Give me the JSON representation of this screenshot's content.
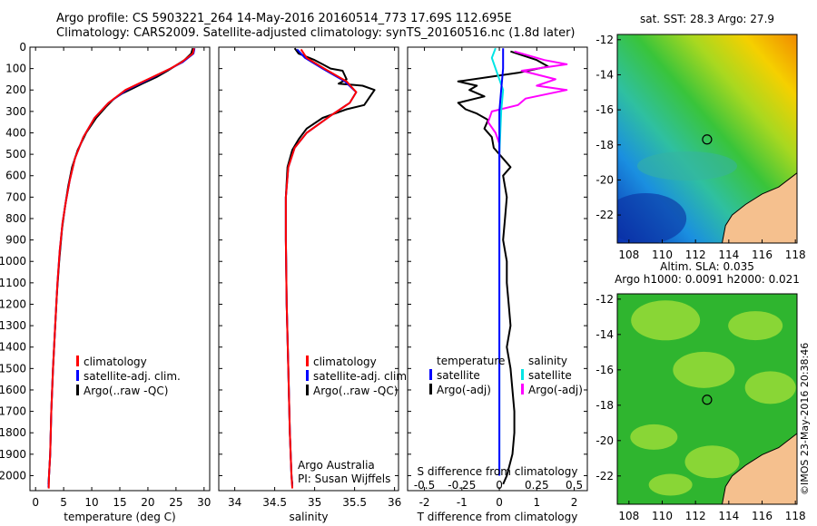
{
  "header": {
    "line1": "Argo profile: CS 5903221_264 14-May-2016 20160514_773 17.69S 112.695E",
    "line2": "Climatology: CARS2009. Satellite-adjusted climatology: synTS_20160516.nc (1.8d later)"
  },
  "copyright": "©IMOS 23-May-2016 20:38:46",
  "colors": {
    "climatology": "#ff0000",
    "satellite": "#0000ff",
    "argo": "#000000",
    "sat_salinity": "#00e5e5",
    "argo_salinity": "#ff00ff",
    "land": "#f5c08e"
  },
  "chart_data": [
    {
      "type": "line",
      "panel": "temperature",
      "xlabel": "temperature (deg C)",
      "xlim": [
        -1,
        31
      ],
      "xticks": [
        0,
        5,
        10,
        15,
        20,
        25,
        30
      ],
      "ylim": [
        2070,
        0
      ],
      "yticks": [
        0,
        100,
        200,
        300,
        400,
        500,
        600,
        700,
        800,
        900,
        1000,
        1100,
        1200,
        1300,
        1400,
        1500,
        1600,
        1700,
        1800,
        1900,
        2000
      ],
      "legend": {
        "placement": "lower-right",
        "entries": [
          "climatology",
          "satellite-adj. clim.",
          "Argo(..raw -QC)"
        ]
      },
      "series": [
        {
          "name": "climatology",
          "color": "#ff0000",
          "points": [
            [
              28.2,
              5
            ],
            [
              28.0,
              30
            ],
            [
              26,
              70
            ],
            [
              24,
              100
            ],
            [
              20,
              150
            ],
            [
              16,
              200
            ],
            [
              13,
              260
            ],
            [
              10.5,
              330
            ],
            [
              8.5,
              420
            ],
            [
              7,
              520
            ],
            [
              6.1,
              620
            ],
            [
              5.4,
              720
            ],
            [
              4.8,
              820
            ],
            [
              4.3,
              950
            ],
            [
              3.9,
              1100
            ],
            [
              3.5,
              1300
            ],
            [
              3.1,
              1500
            ],
            [
              2.8,
              1700
            ],
            [
              2.6,
              1900
            ],
            [
              2.4,
              2000
            ],
            [
              2.35,
              2060
            ]
          ]
        },
        {
          "name": "satellite-adj. clim.",
          "color": "#0000ff",
          "points": [
            [
              28.3,
              5
            ],
            [
              28.1,
              30
            ],
            [
              26.2,
              70
            ],
            [
              24,
              100
            ],
            [
              20.2,
              150
            ],
            [
              16.2,
              200
            ],
            [
              13,
              260
            ],
            [
              10.5,
              330
            ],
            [
              8.5,
              420
            ],
            [
              7,
              520
            ],
            [
              6.1,
              620
            ],
            [
              5.4,
              720
            ],
            [
              4.8,
              820
            ],
            [
              4.3,
              950
            ],
            [
              3.9,
              1100
            ],
            [
              3.5,
              1300
            ],
            [
              3.1,
              1500
            ],
            [
              2.8,
              1700
            ],
            [
              2.6,
              1900
            ],
            [
              2.4,
              2000
            ],
            [
              2.3,
              2055
            ]
          ]
        },
        {
          "name": "Argo(..raw -QC)",
          "color": "#000000",
          "points": [
            [
              28.0,
              5
            ],
            [
              27.7,
              30
            ],
            [
              26.5,
              60
            ],
            [
              25,
              85
            ],
            [
              23.5,
              110
            ],
            [
              21.5,
              140
            ],
            [
              19,
              170
            ],
            [
              17.5,
              190
            ],
            [
              15.5,
              215
            ],
            [
              14,
              240
            ],
            [
              12.5,
              280
            ],
            [
              10.8,
              330
            ],
            [
              9,
              400
            ],
            [
              7.5,
              480
            ],
            [
              6.5,
              560
            ],
            [
              5.8,
              650
            ],
            [
              5.2,
              750
            ],
            [
              4.7,
              850
            ],
            [
              4.2,
              1000
            ],
            [
              3.8,
              1150
            ],
            [
              3.4,
              1350
            ],
            [
              3.1,
              1500
            ],
            [
              2.8,
              1700
            ],
            [
              2.6,
              1900
            ],
            [
              2.4,
              2000
            ],
            [
              2.3,
              2040
            ]
          ]
        }
      ]
    },
    {
      "type": "line",
      "panel": "salinity",
      "xlabel": "salinity",
      "xlim": [
        33.8,
        36.05
      ],
      "xticks": [
        34,
        34.5,
        35,
        35.5,
        36
      ],
      "ylim": [
        2070,
        0
      ],
      "legend": {
        "placement": "lower-right",
        "entries": [
          "climatology",
          "satellite-adj. clim.",
          "Argo(..raw -QC)"
        ]
      },
      "annotations": [
        "Argo Australia",
        "PI: Susan Wijffels"
      ],
      "series": [
        {
          "name": "climatology",
          "color": "#ff0000",
          "points": [
            [
              34.83,
              10
            ],
            [
              34.9,
              50
            ],
            [
              35.12,
              100
            ],
            [
              35.4,
              160
            ],
            [
              35.52,
              210
            ],
            [
              35.44,
              260
            ],
            [
              35.2,
              320
            ],
            [
              34.9,
              400
            ],
            [
              34.75,
              470
            ],
            [
              34.67,
              560
            ],
            [
              34.64,
              700
            ],
            [
              34.64,
              900
            ],
            [
              34.65,
              1200
            ],
            [
              34.67,
              1500
            ],
            [
              34.69,
              1800
            ],
            [
              34.71,
              2000
            ],
            [
              34.72,
              2060
            ]
          ]
        },
        {
          "name": "satellite-adj. clim.",
          "color": "#0000ff",
          "points": [
            [
              34.78,
              10
            ],
            [
              34.88,
              50
            ],
            [
              35.1,
              100
            ],
            [
              35.38,
              160
            ],
            [
              35.52,
              210
            ],
            [
              35.44,
              260
            ],
            [
              35.2,
              320
            ],
            [
              34.9,
              400
            ],
            [
              34.75,
              470
            ],
            [
              34.67,
              560
            ],
            [
              34.64,
              700
            ],
            [
              34.64,
              900
            ],
            [
              34.65,
              1200
            ],
            [
              34.67,
              1500
            ],
            [
              34.69,
              1800
            ],
            [
              34.71,
              2000
            ],
            [
              34.72,
              2050
            ]
          ]
        },
        {
          "name": "Argo(..raw -QC)",
          "color": "#000000",
          "points": [
            [
              34.75,
              5
            ],
            [
              34.8,
              30
            ],
            [
              35.0,
              60
            ],
            [
              35.1,
              80
            ],
            [
              35.2,
              100
            ],
            [
              35.35,
              110
            ],
            [
              35.4,
              150
            ],
            [
              35.3,
              170
            ],
            [
              35.6,
              180
            ],
            [
              35.75,
              200
            ],
            [
              35.62,
              270
            ],
            [
              35.4,
              290
            ],
            [
              35.1,
              330
            ],
            [
              34.9,
              380
            ],
            [
              34.8,
              430
            ],
            [
              34.72,
              480
            ],
            [
              34.66,
              560
            ],
            [
              34.64,
              700
            ],
            [
              34.64,
              900
            ],
            [
              34.65,
              1200
            ],
            [
              34.67,
              1500
            ],
            [
              34.69,
              1800
            ],
            [
              34.71,
              2000
            ],
            [
              34.72,
              2040
            ]
          ]
        }
      ]
    },
    {
      "type": "line",
      "panel": "differences",
      "xlabel": "T difference from climatology",
      "xlabel_top": "S difference from climatology",
      "xlim": [
        -2.45,
        2.35
      ],
      "xticks": [
        -2,
        -1,
        0,
        1,
        2
      ],
      "xticks_top": [
        "-0.5",
        "-0.25",
        "0",
        "0.25",
        "0.5"
      ],
      "ylim": [
        2070,
        0
      ],
      "legend": {
        "placement": "lower-center",
        "headers": [
          "temperature",
          "salinity"
        ],
        "entries": [
          "satellite",
          "Argo(-adj)",
          "satellite",
          "Argo(-adj)"
        ]
      },
      "series": [
        {
          "name": "temperature satellite",
          "color": "#0000ff",
          "points": [
            [
              0.1,
              5
            ],
            [
              0.1,
              100
            ],
            [
              0.05,
              200
            ],
            [
              0,
              300
            ],
            [
              0,
              500
            ],
            [
              0,
              1000
            ],
            [
              0,
              1500
            ],
            [
              0,
              2000
            ]
          ]
        },
        {
          "name": "temperature Argo(-adj)",
          "color": "#000000",
          "points": [
            [
              0.3,
              20
            ],
            [
              1,
              60
            ],
            [
              1.3,
              90
            ],
            [
              0.5,
              120
            ],
            [
              -1.1,
              160
            ],
            [
              -0.6,
              180
            ],
            [
              -0.8,
              200
            ],
            [
              -0.4,
              230
            ],
            [
              -1.1,
              260
            ],
            [
              -0.9,
              290
            ],
            [
              -0.6,
              310
            ],
            [
              -0.3,
              340
            ],
            [
              -0.4,
              380
            ],
            [
              -0.2,
              420
            ],
            [
              -0.15,
              470
            ],
            [
              0.1,
              520
            ],
            [
              0.3,
              560
            ],
            [
              0.1,
              600
            ],
            [
              0.2,
              700
            ],
            [
              0.15,
              800
            ],
            [
              0.1,
              900
            ],
            [
              0.2,
              1000
            ],
            [
              0.2,
              1100
            ],
            [
              0.25,
              1200
            ],
            [
              0.3,
              1300
            ],
            [
              0.2,
              1400
            ],
            [
              0.3,
              1500
            ],
            [
              0.35,
              1600
            ],
            [
              0.4,
              1700
            ],
            [
              0.4,
              1800
            ],
            [
              0.35,
              1900
            ],
            [
              0.2,
              2000
            ],
            [
              0.1,
              2040
            ]
          ]
        },
        {
          "name": "salinity satellite",
          "color": "#00e5e5",
          "points": [
            [
              -0.1,
              5
            ],
            [
              -0.2,
              50
            ],
            [
              -0.1,
              100
            ],
            [
              0,
              150
            ],
            [
              0.1,
              200
            ],
            [
              0.05,
              300
            ],
            [
              0,
              500
            ],
            [
              0,
              1000
            ],
            [
              0,
              1500
            ],
            [
              0,
              2000
            ]
          ]
        },
        {
          "name": "salinity Argo(-adj)",
          "color": "#ff00ff",
          "points": [
            [
              0.4,
              20
            ],
            [
              1.2,
              60
            ],
            [
              1.8,
              80
            ],
            [
              0.6,
              110
            ],
            [
              1.5,
              150
            ],
            [
              1.0,
              180
            ],
            [
              1.8,
              200
            ],
            [
              0.7,
              240
            ],
            [
              0.5,
              270
            ],
            [
              -0.2,
              300
            ],
            [
              -0.3,
              350
            ],
            [
              -0.1,
              400
            ],
            [
              0,
              450
            ],
            [
              0,
              500
            ],
            [
              0,
              600
            ]
          ]
        }
      ]
    },
    {
      "type": "heatmap",
      "panel": "sst-map",
      "title": "sat. SST: 28.3 Argo: 27.9",
      "xlim": [
        107.3,
        118.1
      ],
      "ylim": [
        -23.6,
        -11.7
      ],
      "xticks": [
        108,
        110,
        112,
        114,
        116,
        118
      ],
      "yticks": [
        -12,
        -14,
        -16,
        -18,
        -20,
        -22
      ],
      "profile_location": {
        "lon": 112.695,
        "lat": -17.69
      }
    },
    {
      "type": "heatmap",
      "panel": "sla-map",
      "title": "Altim. SLA: 0.035",
      "title2": "Argo h1000: 0.0091 h2000: 0.021",
      "xlim": [
        107.3,
        118.1
      ],
      "ylim": [
        -23.6,
        -11.7
      ],
      "xticks": [
        108,
        110,
        112,
        114,
        116,
        118
      ],
      "yticks": [
        -12,
        -14,
        -16,
        -18,
        -20,
        -22
      ],
      "profile_location": {
        "lon": 112.695,
        "lat": -17.69
      }
    }
  ]
}
